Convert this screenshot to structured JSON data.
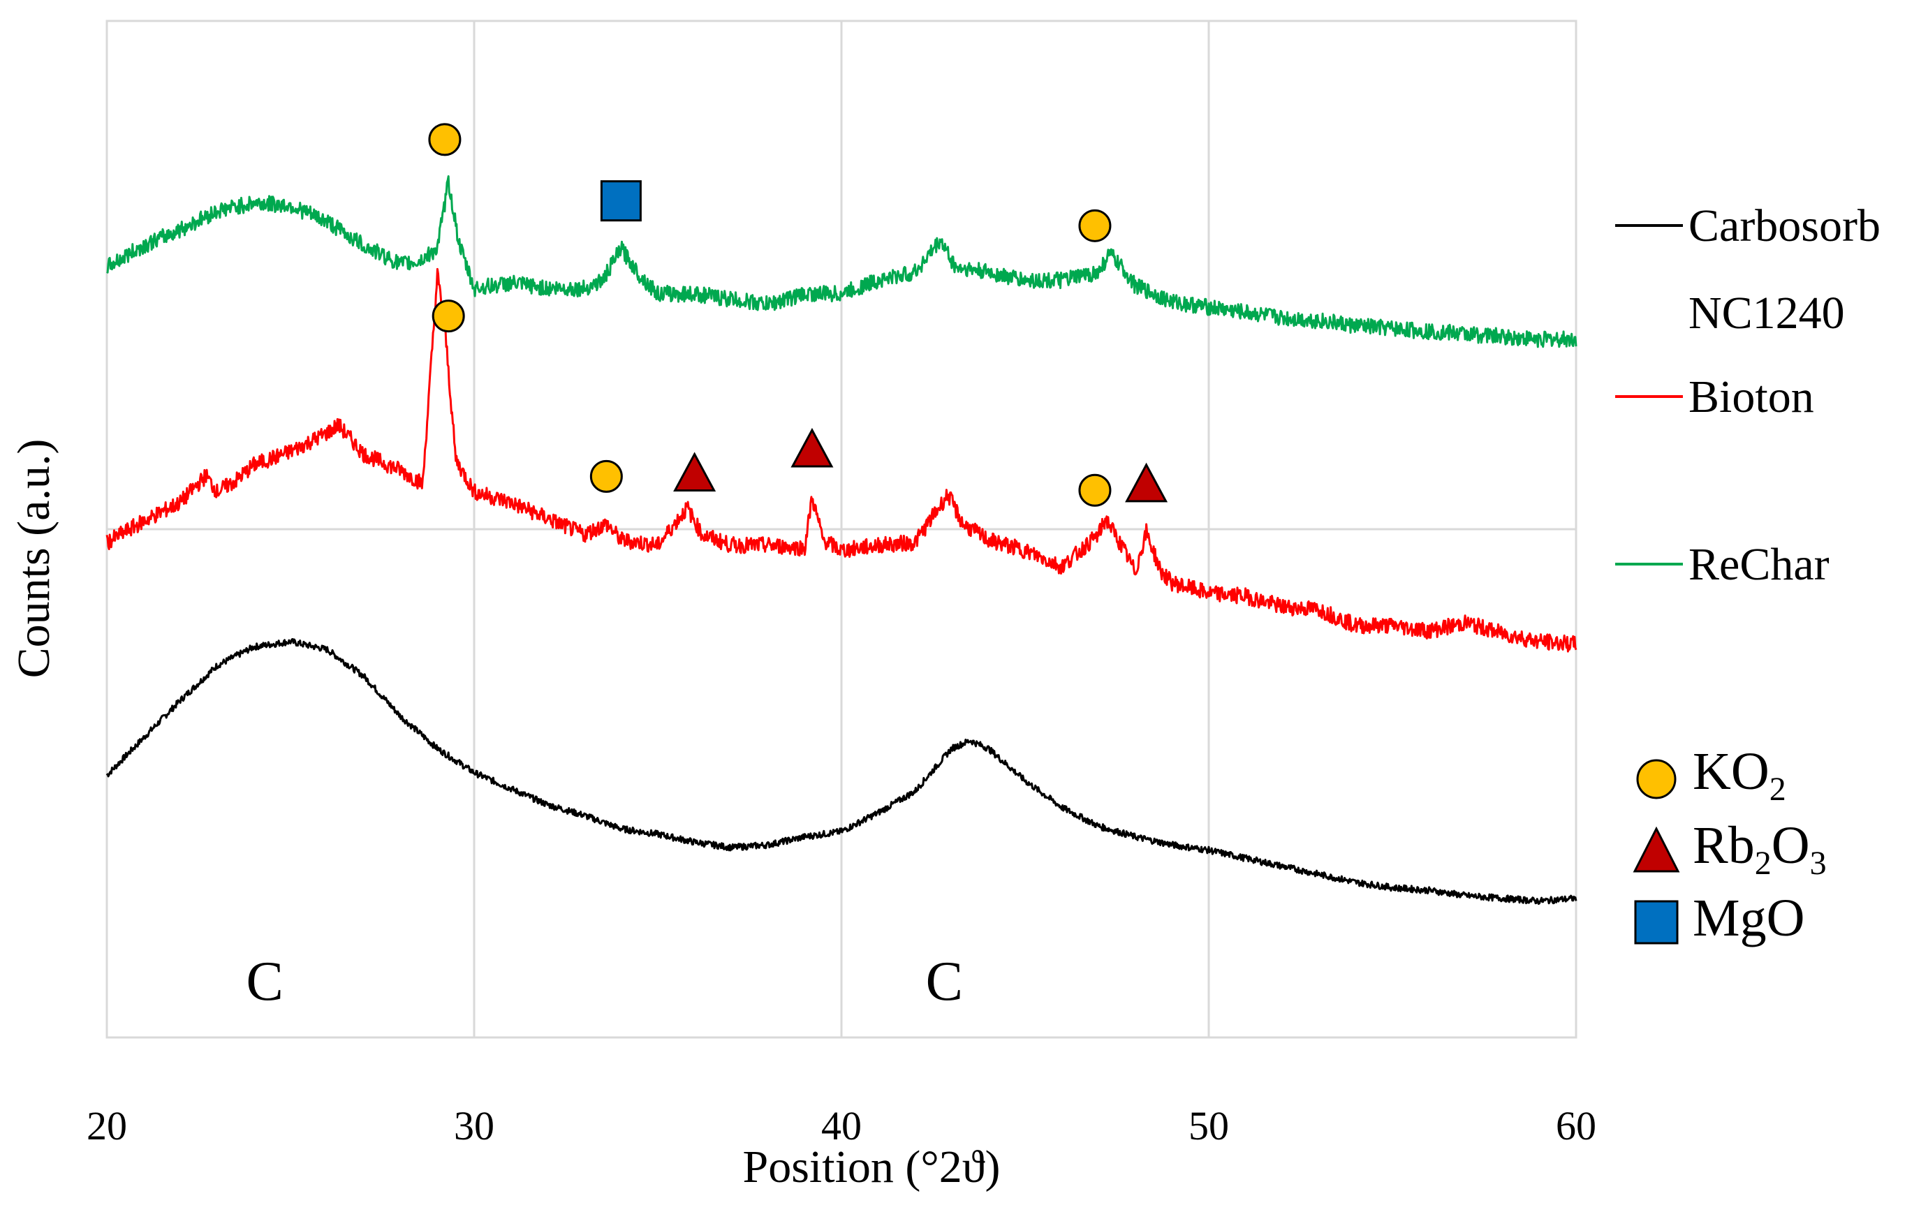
{
  "chart_data": {
    "type": "line",
    "title": "",
    "xlabel": "Position (°2ϑ)",
    "ylabel": "Counts (a.u.)",
    "xlim": [
      20,
      60
    ],
    "xticks": [
      "20",
      "30",
      "40",
      "50",
      "60"
    ],
    "grid": true,
    "series": [
      {
        "name": "Carbosorb",
        "color": "#000000",
        "x": [
          20,
          21,
          22,
          23,
          24,
          25,
          26,
          27,
          28,
          29,
          30,
          31,
          32,
          33,
          34,
          35,
          36,
          37,
          38,
          39,
          40,
          41,
          42,
          43,
          43.5,
          44,
          45,
          46,
          47,
          48,
          49,
          50,
          51,
          52,
          53,
          54,
          55,
          56,
          57,
          58,
          59,
          60
        ],
        "values": [
          8,
          22,
          36,
          49,
          56,
          58,
          55,
          45,
          30,
          18,
          9,
          3,
          -3,
          -7,
          -12,
          -14,
          -17,
          -19,
          -18,
          -15,
          -13,
          -6,
          2,
          18,
          21,
          18,
          6,
          -4,
          -11,
          -15,
          -18,
          -20,
          -23,
          -26,
          -29,
          -32,
          -34,
          -35,
          -37,
          -38,
          -39,
          -38
        ]
      },
      {
        "name": "NC1240",
        "color": "#ffffff",
        "x": [],
        "values": []
      },
      {
        "name": "Bioton",
        "color": "#ff0000",
        "x": [
          20,
          21,
          22,
          22.7,
          23,
          23.5,
          24,
          25,
          26,
          26.3,
          27,
          28,
          28.6,
          29,
          29.2,
          29.5,
          30,
          31,
          32,
          33,
          33.6,
          34,
          35,
          35.8,
          36.2,
          37,
          38,
          39,
          39.2,
          39.5,
          40,
          41,
          42,
          42.9,
          43.3,
          44,
          45,
          46,
          47,
          47.2,
          47.7,
          48,
          48.3,
          48.7,
          49,
          50,
          51,
          52,
          53,
          54,
          55,
          56,
          57,
          58,
          59,
          60
        ],
        "values": [
          95,
          103,
          110,
          120,
          114,
          118,
          124,
          129,
          136,
          139,
          128,
          122,
          117,
          195,
          176,
          126,
          114,
          110,
          104,
          98,
          102,
          96,
          94,
          108,
          98,
          94,
          94,
          93,
          112,
          96,
          92,
          94,
          95,
          113,
          102,
          96,
          92,
          86,
          98,
          104,
          92,
          84,
          99,
          84,
          80,
          76,
          75,
          71,
          70,
          64,
          64,
          62,
          65,
          61,
          58,
          57
        ]
      },
      {
        "name": "ReChar",
        "color": "#00a84f",
        "x": [
          20,
          21,
          22,
          23,
          24,
          25,
          26,
          27,
          28,
          28.5,
          29,
          29.3,
          29.6,
          30,
          31,
          32,
          33,
          33.5,
          34,
          34.5,
          35,
          36,
          37,
          38,
          39,
          40,
          41,
          42,
          42.7,
          43.1,
          44,
          45,
          46,
          47,
          47.3,
          47.8,
          48,
          49,
          50,
          51,
          52,
          53,
          54,
          55,
          56,
          57,
          58,
          59,
          60
        ],
        "values": [
          198,
          206,
          212,
          219,
          222,
          221,
          215,
          206,
          199,
          200,
          205,
          230,
          206,
          190,
          192,
          190,
          190,
          193,
          205,
          195,
          188,
          188,
          186,
          184,
          188,
          188,
          193,
          196,
          208,
          198,
          196,
          193,
          193,
          196,
          203,
          195,
          191,
          185,
          183,
          181,
          179,
          178,
          176,
          175,
          174,
          173,
          172,
          171,
          171
        ]
      }
    ],
    "annotations": [
      {
        "marker": "circle",
        "phase": "KO2",
        "x": 29.2,
        "series": "ReChar"
      },
      {
        "marker": "square",
        "phase": "MgO",
        "x": 34.0,
        "series": "ReChar"
      },
      {
        "marker": "circle",
        "phase": "KO2",
        "x": 46.9,
        "series": "ReChar"
      },
      {
        "marker": "circle",
        "phase": "KO2",
        "x": 29.3,
        "series": "Bioton"
      },
      {
        "marker": "circle",
        "phase": "KO2",
        "x": 33.6,
        "series": "Bioton"
      },
      {
        "marker": "triangle",
        "phase": "Rb2O3",
        "x": 36.0,
        "series": "Bioton"
      },
      {
        "marker": "triangle",
        "phase": "Rb2O3",
        "x": 39.2,
        "series": "Bioton"
      },
      {
        "marker": "circle",
        "phase": "KO2",
        "x": 46.9,
        "series": "Bioton"
      },
      {
        "marker": "triangle",
        "phase": "Rb2O3",
        "x": 48.3,
        "series": "Bioton"
      }
    ],
    "peak_labels": [
      {
        "text": "C",
        "x": 24.3
      },
      {
        "text": "C",
        "x": 42.8
      }
    ],
    "legend": {
      "placement": "right",
      "entries": [
        "Carbosorb",
        "NC1240",
        "Bioton",
        "ReChar"
      ]
    },
    "marker_legend": [
      {
        "marker": "circle",
        "base": "KO",
        "sub1": "2",
        "mid": "",
        "sub2": "",
        "color": "#ffc000"
      },
      {
        "marker": "triangle",
        "base": "Rb",
        "sub1": "2",
        "mid": "O",
        "sub2": "3",
        "color": "#c00000"
      },
      {
        "marker": "square",
        "base": "MgO",
        "sub1": "",
        "mid": "",
        "sub2": "",
        "color": "#0070c0"
      }
    ]
  }
}
